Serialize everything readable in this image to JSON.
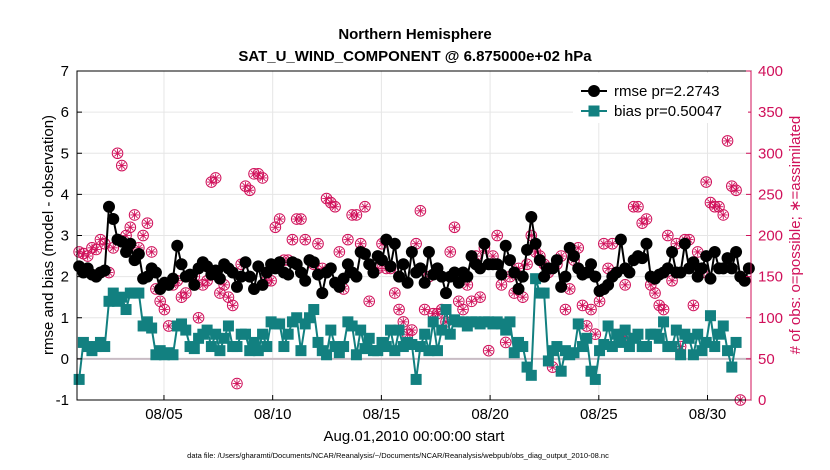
{
  "chart_data": {
    "type": "line",
    "title": "Northern Hemisphere",
    "subtitle": "SAT_U_WIND_COMPONENT @ 6.875000e+02 hPa",
    "xlabel": "Aug.01,2010 00:00:00 start",
    "ylabel": "rmse and bias (model - observation)",
    "ylabel_right": "# of obs: o=possible; ∗=assimilated",
    "footnote": "data file: /Users/gharamti/Documents/NCAR/Reanalysis/~/Documents/NCAR/Reanalysis/webpub/obs_diag_output_2010-08.nc",
    "xlim": [
      1,
      32
    ],
    "ylim": [
      -1,
      7
    ],
    "ylim_right": [
      0,
      400
    ],
    "x_tick_values": [
      5,
      10,
      15,
      20,
      25,
      30
    ],
    "x_tick_labels": [
      "08/05",
      "08/10",
      "08/15",
      "08/20",
      "08/25",
      "08/30"
    ],
    "y_ticks": [
      -1,
      0,
      1,
      2,
      3,
      4,
      5,
      6,
      7
    ],
    "y_ticks_right": [
      0,
      50,
      100,
      150,
      200,
      250,
      300,
      350,
      400
    ],
    "zero_line": 0,
    "colors": {
      "rmse": "#000000",
      "bias": "#128080",
      "obs": "#d0105a",
      "zero_line": "#c8bcc4"
    },
    "series": [
      {
        "name": "rmse pr=2.2743",
        "marker": "circle",
        "values": [
          2.25,
          2.1,
          2.2,
          2.05,
          2.0,
          2.1,
          2.15,
          3.7,
          3.4,
          2.9,
          2.85,
          2.6,
          2.8,
          2.4,
          2.55,
          1.95,
          2.0,
          2.2,
          2.1,
          1.7,
          1.85,
          1.8,
          1.95,
          2.75,
          2.3,
          2.0,
          2.05,
          1.8,
          2.2,
          2.35,
          2.25,
          2.05,
          2.15,
          1.95,
          2.3,
          2.2,
          2.1,
          1.75,
          2.0,
          2.35,
          2.0,
          1.7,
          2.25,
          1.8,
          2.1,
          2.3,
          2.2,
          2.35,
          2.1,
          2.05,
          2.35,
          2.3,
          2.1,
          1.9,
          2.4,
          2.35,
          2.05,
          1.6,
          2.1,
          2.2,
          1.85,
          1.75,
          1.95,
          2.3,
          2.1,
          2.0,
          2.6,
          2.55,
          2.3,
          2.1,
          2.5,
          2.4,
          2.9,
          2.25,
          2.8,
          2.0,
          2.3,
          1.85,
          2.6,
          2.1,
          2.2,
          1.85,
          2.6,
          2.05,
          2.2,
          2.0,
          1.6,
          2.0,
          2.1,
          1.85,
          2.1,
          2.0,
          2.5,
          2.3,
          2.2,
          2.8,
          2.3,
          2.3,
          2.3,
          2.05,
          2.75,
          2.4,
          2.1,
          1.7,
          2.0,
          2.65,
          3.45,
          2.8,
          2.4,
          2.0,
          2.2,
          2.2,
          2.4,
          1.75,
          2.0,
          2.7,
          2.5,
          2.2,
          2.05,
          2.1,
          2.3,
          2.0,
          1.65,
          1.7,
          1.8,
          2.0,
          2.1,
          2.9,
          2.2,
          2.1,
          2.4,
          2.5,
          2.45,
          2.8,
          2.0,
          1.95,
          2.05,
          2.1,
          2.2,
          2.6,
          2.1,
          2.1,
          2.8,
          2.2,
          2.35,
          2.0,
          2.2,
          2.5,
          1.95,
          2.6,
          2.2,
          2.2,
          2.45,
          2.2,
          2.6,
          2.0,
          1.9,
          2.2
        ]
      },
      {
        "name": "bias pr=0.50047",
        "marker": "square",
        "values": [
          -0.5,
          0.4,
          0.3,
          0.2,
          0.3,
          0.4,
          0.3,
          1.4,
          1.6,
          1.4,
          1.5,
          1.2,
          1.6,
          1.6,
          1.6,
          0.8,
          0.9,
          0.75,
          0.1,
          0.2,
          0.1,
          0.15,
          0.1,
          0.8,
          0.85,
          0.7,
          0.3,
          0.25,
          0.5,
          0.6,
          0.7,
          0.3,
          0.6,
          0.2,
          0.5,
          0.8,
          0.3,
          0.3,
          0.6,
          0.6,
          0.2,
          0.4,
          0.2,
          0.6,
          0.3,
          0.9,
          0.85,
          0.85,
          0.3,
          0.6,
          0.9,
          1.0,
          0.2,
          0.85,
          1.0,
          1.2,
          0.4,
          0.2,
          0.1,
          0.7,
          0.3,
          0.15,
          0.3,
          0.9,
          0.8,
          0.1,
          0.7,
          0.25,
          0.5,
          0.2,
          0.2,
          0.4,
          0.3,
          0.7,
          0.2,
          0.7,
          0.3,
          0.4,
          0.35,
          -0.5,
          0.3,
          0.6,
          0.2,
          0.9,
          0.2,
          0.7,
          1.2,
          0.6,
          0.95,
          0.9,
          0.9,
          0.8,
          0.9,
          0.9,
          0.85,
          0.9,
          0.9,
          0.85,
          0.9,
          0.85,
          0.7,
          0.9,
          0.15,
          0.4,
          0.3,
          -0.2,
          -0.4,
          1.95,
          1.6,
          1.6,
          -0.05,
          0.2,
          0.3,
          -0.3,
          0.2,
          0.1,
          0.15,
          0.85,
          0.3,
          0.5,
          -0.3,
          -0.5,
          0.2,
          0.35,
          0.8,
          0.3,
          0.6,
          0.4,
          0.7,
          0.3,
          0.5,
          0.6,
          0.3,
          0.3,
          0.6,
          0.6,
          0.5,
          0.9,
          0.3,
          0.3,
          0.7,
          0.1,
          0.6,
          0.5,
          0.1,
          0.6,
          0.2,
          0.4,
          1.05,
          0.3,
          0.6,
          0.8,
          0.2,
          -0.2,
          0.4
        ]
      },
      {
        "name": "# of obs (possible / assimilated)",
        "axis": "right",
        "marker": "circled-asterisk",
        "values": [
          180,
          178,
          175,
          185,
          183,
          195,
          190,
          155,
          185,
          300,
          285,
          200,
          210,
          225,
          185,
          200,
          215,
          180,
          135,
          120,
          110,
          90,
          140,
          145,
          125,
          130,
          150,
          150,
          100,
          140,
          145,
          265,
          270,
          130,
          140,
          125,
          115,
          20,
          165,
          260,
          255,
          275,
          275,
          270,
          145,
          145,
          210,
          220,
          170,
          170,
          195,
          220,
          220,
          195,
          170,
          165,
          190,
          160,
          245,
          240,
          235,
          180,
          135,
          195,
          225,
          225,
          190,
          235,
          120,
          155,
          160,
          190,
          160,
          160,
          130,
          110,
          95,
          80,
          85,
          190,
          230,
          110,
          150,
          105,
          105,
          110,
          95,
          180,
          210,
          120,
          110,
          140,
          120,
          175,
          125,
          185,
          60,
          175,
          200,
          140,
          70,
          150,
          130,
          160,
          125,
          165,
          200,
          180,
          175,
          165,
          155,
          40,
          165,
          175,
          110,
          135,
          170,
          185,
          115,
          90,
          110,
          80,
          120,
          190,
          160,
          190,
          155,
          80,
          140,
          75,
          235,
          235,
          215,
          220,
          140,
          130,
          115,
          110,
          200,
          145,
          190,
          65,
          195,
          195,
          115,
          180,
          155,
          265,
          240,
          235,
          235,
          225,
          315,
          260,
          255,
          0
        ]
      }
    ],
    "legend": {
      "location": "top-right",
      "entries": [
        "rmse pr=2.2743",
        "bias pr=0.50047"
      ]
    }
  }
}
